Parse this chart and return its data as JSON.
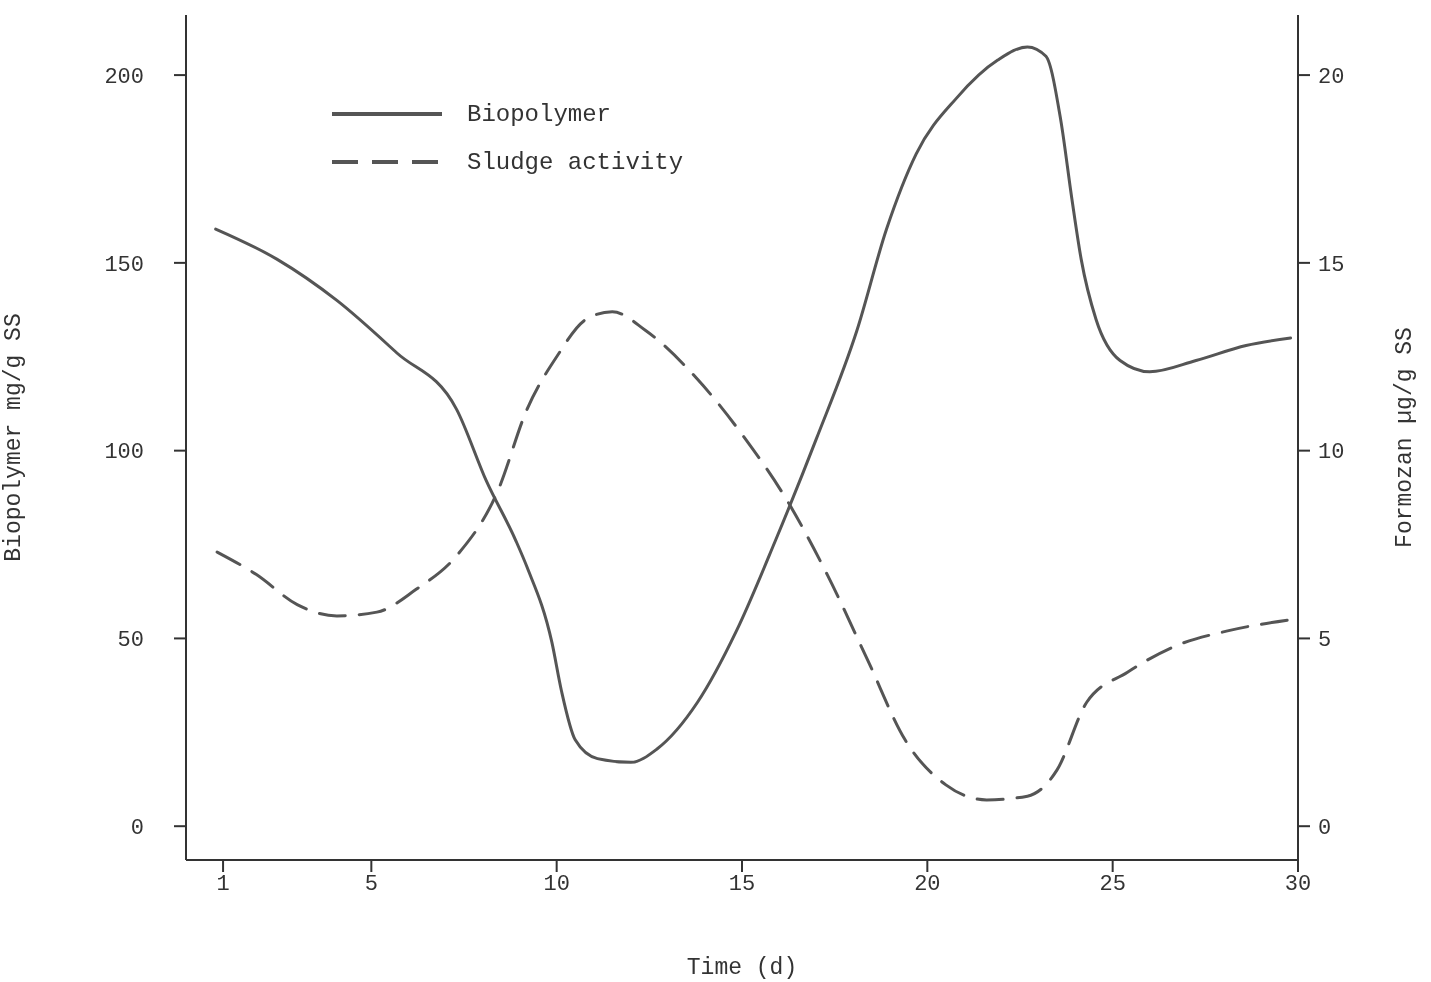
{
  "chart_data": {
    "type": "line",
    "xlabel": "Time (d)",
    "ylabel": "Biopolymer mg/g SS",
    "y2label": "Formozan µg/g SS",
    "xlim": [
      0,
      30
    ],
    "xticks": [
      1,
      5,
      10,
      15,
      20,
      25,
      30
    ],
    "ylim": [
      -9,
      216
    ],
    "yticks": [
      0,
      50,
      100,
      150,
      200
    ],
    "y2lim": [
      -0.9,
      21.6
    ],
    "y2ticks": [
      0,
      5,
      10,
      15,
      20
    ],
    "legend": "top left",
    "grid": false,
    "marker": "none",
    "series": [
      {
        "name": "Biopolymer",
        "color": "#555555",
        "line_style": "solid",
        "x": [
          0.8,
          2.45,
          4.07,
          5.69,
          7.3,
          8.1,
          8.9,
          9.2,
          9.87,
          10.13,
          10.5,
          11.1,
          12.0,
          12.7,
          13.8,
          14.85,
          15.9,
          17.0,
          18.1,
          18.9,
          19.7,
          20.8,
          21.9,
          22.7,
          23.2,
          23.6,
          23.9,
          24.15,
          24.55,
          25.2,
          26.0,
          27.25,
          28.6,
          29.8
        ],
        "values": [
          159,
          151,
          140,
          126,
          111,
          92,
          76,
          69,
          49,
          36,
          23,
          18,
          17,
          20.5,
          33,
          52,
          76,
          103,
          132,
          159,
          179,
          194,
          204,
          207.5,
          205,
          188,
          167,
          151,
          135,
          124,
          121,
          124,
          128,
          130
        ]
      },
      {
        "name": "Sludge activity",
        "color": "#555555",
        "line_style": "dashed",
        "axis": "y2",
        "x": [
          0.84,
          1.9,
          3.0,
          4.07,
          5.15,
          6.2,
          7.3,
          8.4,
          9.2,
          10.0,
          10.8,
          11.5,
          12.4,
          13.8,
          15.1,
          16.2,
          17.3,
          18.4,
          19.4,
          20.5,
          21.6,
          22.7,
          23.5,
          24.3,
          25.4,
          26.7,
          28.1,
          29.8
        ],
        "values": [
          7.3,
          6.7,
          5.9,
          5.6,
          5.7,
          6.3,
          7.2,
          8.9,
          11.1,
          12.5,
          13.5,
          13.7,
          13.2,
          11.9,
          10.3,
          8.7,
          6.7,
          4.4,
          2.3,
          1.1,
          0.7,
          0.8,
          1.5,
          3.3,
          4.1,
          4.8,
          5.2,
          5.5
        ]
      }
    ]
  }
}
